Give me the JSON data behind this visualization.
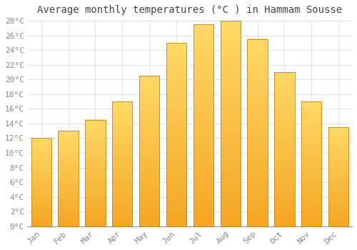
{
  "title": "Average monthly temperatures (°C ) in Hammam Sousse",
  "months": [
    "Jan",
    "Feb",
    "Mar",
    "Apr",
    "May",
    "Jun",
    "Jul",
    "Aug",
    "Sep",
    "Oct",
    "Nov",
    "Dec"
  ],
  "temperatures": [
    12,
    13,
    14.5,
    17,
    20.5,
    25,
    27.5,
    28,
    25.5,
    21,
    17,
    13.5
  ],
  "bar_color_bottom": "#F5A623",
  "bar_color_top": "#FFD966",
  "bar_edge_color": "#C8870A",
  "background_color": "#FFFFFF",
  "grid_color": "#DDDDDD",
  "ylim": [
    0,
    28
  ],
  "ytick_step": 2,
  "title_fontsize": 10,
  "tick_fontsize": 8,
  "font_family": "monospace"
}
